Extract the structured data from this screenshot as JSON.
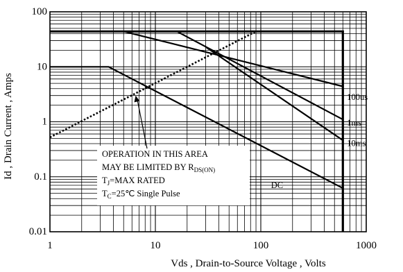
{
  "chart_data": {
    "type": "line",
    "title": "",
    "xlabel": "Vds , Drain-to-Source Voltage , Volts",
    "ylabel": "Id , Drain Current , Amps",
    "xscale": "log",
    "yscale": "log",
    "xlim": [
      1,
      1000
    ],
    "ylim": [
      0.01,
      100
    ],
    "grid": true,
    "xticks": [
      "1",
      "10",
      "100",
      "1000"
    ],
    "yticks": [
      "0.01",
      "0.1",
      "1",
      "10",
      "100"
    ],
    "series": [
      {
        "name": "100us",
        "style": "solid",
        "x": [
          5,
          600
        ],
        "y": [
          44,
          4.4
        ]
      },
      {
        "name": "1ms",
        "style": "solid",
        "x": [
          16,
          600
        ],
        "y": [
          44,
          1.1
        ]
      },
      {
        "name": "10ms",
        "style": "solid",
        "x": [
          30,
          600
        ],
        "y": [
          23,
          0.46
        ]
      },
      {
        "name": "DC",
        "style": "solid",
        "x": [
          1,
          3.6,
          600
        ],
        "y": [
          10,
          10,
          0.062
        ]
      },
      {
        "name": "",
        "style": "solid",
        "x": [
          1,
          600,
          600
        ],
        "y": [
          44,
          44,
          0.01
        ]
      },
      {
        "name": "",
        "style": "dotted",
        "x": [
          1,
          90
        ],
        "y": [
          0.52,
          44
        ]
      }
    ],
    "annotation": {
      "lines": [
        {
          "text": "OPERATION IN THIS AREA",
          "sub": ""
        },
        {
          "text": "MAY BE LIMITED BY R",
          "sub": "DS(ON)"
        },
        {
          "text": "T",
          "sub": "J",
          "rest": "=MAX RATED"
        },
        {
          "text": "T",
          "sub": "C",
          "rest": "=25℃  Single Pulse"
        }
      ],
      "arrow_to": [
        6.5,
        3
      ]
    }
  }
}
